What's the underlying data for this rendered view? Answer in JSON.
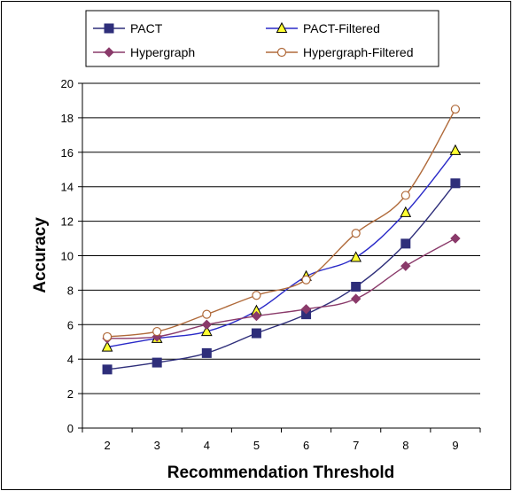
{
  "chart_data": {
    "type": "line",
    "title": "",
    "xlabel": "Recommendation Threshold",
    "ylabel": "Accuracy",
    "x": [
      2,
      3,
      4,
      5,
      6,
      7,
      8,
      9
    ],
    "xlim": [
      1.5,
      9.5
    ],
    "ylim": [
      0,
      20
    ],
    "yticks": [
      0,
      2,
      4,
      6,
      8,
      10,
      12,
      14,
      16,
      18,
      20
    ],
    "grid": "horizontal",
    "legend_position": "top",
    "series": [
      {
        "name": "PACT",
        "color": "#2e2e7a",
        "marker": "square",
        "fill": "#2e2e7a",
        "values": [
          3.4,
          3.8,
          4.35,
          5.5,
          6.6,
          8.2,
          10.7,
          14.2
        ]
      },
      {
        "name": "PACT-Filtered",
        "color": "#2a2ac8",
        "marker": "triangle",
        "fill": "#ffff33",
        "values": [
          4.7,
          5.2,
          5.6,
          6.8,
          8.8,
          9.9,
          12.5,
          16.1
        ]
      },
      {
        "name": "Hypergraph",
        "color": "#8a3a6a",
        "marker": "diamond",
        "fill": "#8a3a6a",
        "values": [
          5.2,
          5.3,
          6.0,
          6.5,
          6.9,
          7.5,
          9.4,
          11.0
        ]
      },
      {
        "name": "Hypergraph-Filtered",
        "color": "#b06a3a",
        "marker": "circle",
        "fill": "#ffffff",
        "values": [
          5.3,
          5.6,
          6.6,
          7.7,
          8.6,
          11.3,
          13.5,
          18.5
        ]
      }
    ]
  }
}
